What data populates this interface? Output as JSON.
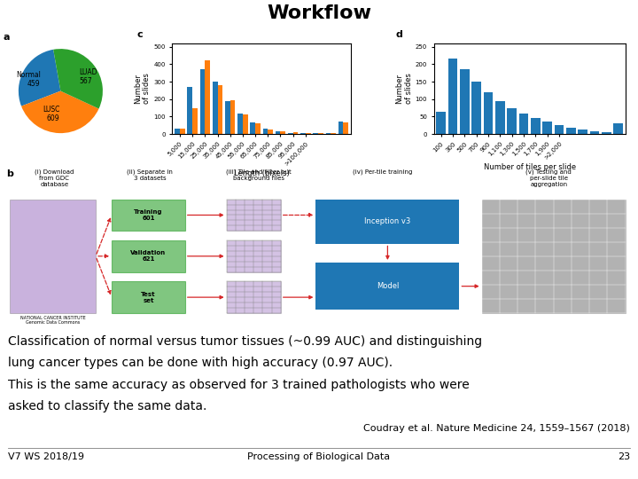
{
  "title": "Workflow",
  "annotations": [
    "Classification of normal versus tumor tissues (~0.99 AUC) and distinguishing",
    "lung cancer types can be done with high accuracy (0.97 AUC).",
    "This is the same accuracy as observed for 3 trained pathologists who were",
    "asked to classify the same data.",
    "Coudray et al. Nature Medicine 24, 1559–1567 (2018)",
    "V7 WS 2018/19",
    "Processing of Biological Data",
    "23"
  ],
  "chart_data": [
    {
      "type": "pie",
      "categories": [
        "Normal\n459",
        "LUSC\n609",
        "LUAD\n567"
      ],
      "values": [
        459,
        609,
        567
      ],
      "annotations": [
        "a"
      ]
    },
    {
      "type": "bar",
      "xlabel": "Length (pixels)",
      "ylabel": "Number\nof slides",
      "categories": [
        "5,000",
        "15,000",
        "25,000",
        "35,000",
        "45,000",
        "55,000",
        "65,000",
        "75,000",
        "85,000",
        "95,000",
        ">100,000",
        null,
        null,
        null
      ],
      "series": [
        {
          "values": [
            30,
            270,
            370,
            300,
            190,
            120,
            65,
            30,
            15,
            8,
            5,
            5,
            5,
            70
          ]
        },
        {
          "values": [
            30,
            150,
            420,
            280,
            195,
            110,
            60,
            25,
            15,
            10,
            8,
            6,
            5,
            65
          ]
        }
      ],
      "ylim": [
        0,
        520
      ],
      "yticks": [
        0,
        100,
        200,
        300,
        400,
        500
      ],
      "annotations": [
        "c"
      ]
    },
    {
      "type": "bar",
      "xlabel": "Number of tiles per slide",
      "ylabel": "Number\nof slides",
      "categories": [
        "100",
        "300",
        "500",
        "700",
        "900",
        "1,100",
        "1,300",
        "1,500",
        "1,700",
        "1,900",
        ">2,000",
        null,
        null,
        null,
        null,
        null
      ],
      "values": [
        65,
        215,
        185,
        150,
        120,
        95,
        75,
        58,
        45,
        35,
        25,
        18,
        12,
        8,
        5,
        30
      ],
      "ylim": [
        0,
        260
      ],
      "yticks": [
        0,
        50,
        100,
        150,
        200,
        250
      ],
      "annotations": [
        "d"
      ]
    },
    {
      "type": "diagram",
      "annotations": [
        "b",
        "(i) Download\nfrom GDC\ndatabase",
        "(ii) Separate in\n3 datasets",
        "(iii) Tile and filter out\nbackground files",
        "(iv) Per-tile training",
        "(v) Testing and\nper-slide tile\naggregation",
        "Training\n601",
        "Validation\n621",
        "Test\nset",
        "NATIONAL CANCER INSTITUTE\nGenomic Data Commons",
        "Inception v3",
        "Model"
      ]
    }
  ]
}
